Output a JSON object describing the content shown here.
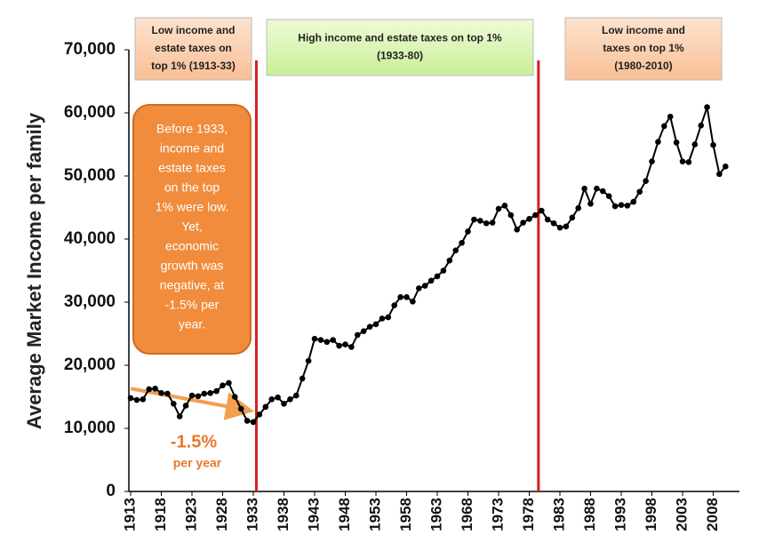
{
  "chart_data": {
    "type": "line",
    "y_label": "Average Market Income per family",
    "x": [
      1913,
      1914,
      1915,
      1916,
      1917,
      1918,
      1919,
      1920,
      1921,
      1922,
      1923,
      1924,
      1925,
      1926,
      1927,
      1928,
      1929,
      1930,
      1931,
      1932,
      1933,
      1934,
      1935,
      1936,
      1937,
      1938,
      1939,
      1940,
      1941,
      1942,
      1943,
      1944,
      1945,
      1946,
      1947,
      1948,
      1949,
      1950,
      1951,
      1952,
      1953,
      1954,
      1955,
      1956,
      1957,
      1958,
      1959,
      1960,
      1961,
      1962,
      1963,
      1964,
      1965,
      1966,
      1967,
      1968,
      1969,
      1970,
      1971,
      1972,
      1973,
      1974,
      1975,
      1976,
      1977,
      1978,
      1979,
      1980,
      1981,
      1982,
      1983,
      1984,
      1985,
      1986,
      1987,
      1988,
      1989,
      1990,
      1991,
      1992,
      1993,
      1994,
      1995,
      1996,
      1997,
      1998,
      1999,
      2000,
      2001,
      2002,
      2003,
      2004,
      2005,
      2006,
      2007,
      2008,
      2009,
      2010
    ],
    "values": [
      14800,
      14500,
      14600,
      16200,
      16300,
      15600,
      15500,
      13900,
      11900,
      13600,
      15200,
      15100,
      15500,
      15600,
      15900,
      16800,
      17200,
      15000,
      13100,
      11200,
      11000,
      12200,
      13400,
      14600,
      14900,
      13900,
      14600,
      15200,
      17900,
      20700,
      24200,
      24000,
      23700,
      24000,
      23100,
      23300,
      22900,
      24800,
      25400,
      26100,
      26500,
      27400,
      27600,
      29500,
      30800,
      30800,
      30100,
      32200,
      32600,
      33400,
      34100,
      35000,
      36600,
      38200,
      39400,
      41200,
      43100,
      42900,
      42500,
      42600,
      44800,
      45300,
      43800,
      41500,
      42600,
      43200,
      43800,
      44500,
      43100,
      42500,
      41800,
      42000,
      43400,
      44900,
      48000,
      45600,
      48000,
      47600,
      46800,
      45200,
      45400,
      45300,
      45900,
      47500,
      49200,
      52300,
      55400,
      57900,
      59400,
      55300,
      52300,
      52200,
      55000,
      58000,
      60900,
      54900,
      50300,
      51500
    ],
    "color": "#000000",
    "xlim": [
      1913,
      2012
    ],
    "xticks": [
      1913,
      1918,
      1923,
      1928,
      1933,
      1938,
      1943,
      1948,
      1953,
      1958,
      1963,
      1968,
      1973,
      1978,
      1983,
      1988,
      1993,
      1998,
      2003,
      2008
    ],
    "ylim": [
      0,
      70000
    ],
    "yticks": [
      0,
      {
        "value": 10000,
        "label": "10,000"
      },
      {
        "value": 20000,
        "label": "20,000"
      },
      {
        "value": 30000,
        "label": "30,000"
      },
      {
        "value": 40000,
        "label": "40,000"
      },
      {
        "value": 50000,
        "label": "50,000"
      },
      {
        "value": 60000,
        "label": "60,000"
      },
      {
        "value": 70000,
        "label": "70,000"
      }
    ],
    "vlines": [
      1933.5,
      1979.5
    ],
    "vline_color": "#d42020",
    "periods": [
      {
        "lines": [
          "Low income and",
          "estate taxes on",
          "top 1% (1913-33)"
        ]
      },
      {
        "lines": [
          "High income and estate taxes on top 1%",
          "(1933-80)"
        ]
      },
      {
        "lines": [
          "Low income and",
          "taxes on top 1%",
          "(1980-2010)"
        ]
      }
    ],
    "note_lines": [
      "Before 1933,",
      "income and",
      "estate taxes",
      "on the top",
      "1% were low.",
      "Yet,",
      "economic",
      "growth was",
      "negative, at",
      "-1.5% per",
      "year."
    ],
    "trend": {
      "x": [
        1913,
        1932
      ],
      "y": [
        16300,
        12900
      ],
      "color": "#f0a050"
    },
    "trend_value": "-1.5%",
    "trend_unit": "per year"
  }
}
